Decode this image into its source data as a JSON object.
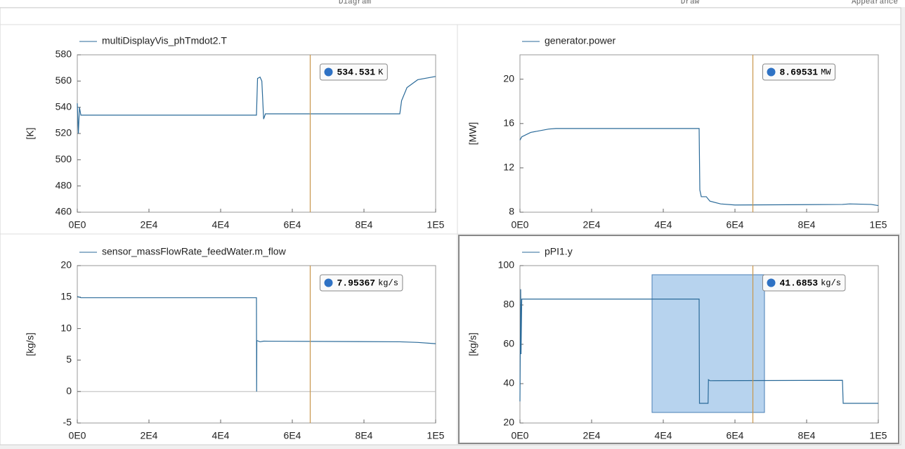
{
  "toolbar": [
    "Diagram",
    "Draw",
    "Appearance"
  ],
  "chart_data": [
    {
      "type": "line",
      "ylabel": "[K]",
      "xlim": [
        0,
        100000
      ],
      "ylim": [
        460,
        580
      ],
      "xticks": [
        {
          "value": 0,
          "label": "0E0"
        },
        {
          "value": 20000,
          "label": "2E4"
        },
        {
          "value": 40000,
          "label": "4E4"
        },
        {
          "value": 60000,
          "label": "6E4"
        },
        {
          "value": 80000,
          "label": "8E4"
        },
        {
          "value": 100000,
          "label": "1E5"
        }
      ],
      "yticks": [
        460,
        480,
        500,
        520,
        540,
        560,
        580
      ],
      "x": [
        0,
        300,
        600,
        1000,
        50000,
        50300,
        51000,
        51500,
        52000,
        52500,
        90000,
        90500,
        92000,
        95000,
        100000
      ],
      "series": [
        {
          "name": "multiDisplayVis_phTmdot2.T",
          "color": "#2a6a99",
          "values": [
            543,
            520,
            540,
            534,
            534,
            562,
            563,
            560,
            531,
            535,
            535,
            545,
            555,
            561,
            563.5
          ]
        }
      ],
      "cursor": {
        "x": 65000,
        "value": 534.531,
        "unit": "K",
        "color": "#c8964b"
      }
    },
    {
      "type": "line",
      "ylabel": "[MW]",
      "xlim": [
        0,
        100000
      ],
      "ylim": [
        8,
        22.2
      ],
      "xticks": [
        {
          "value": 0,
          "label": "0E0"
        },
        {
          "value": 20000,
          "label": "2E4"
        },
        {
          "value": 40000,
          "label": "4E4"
        },
        {
          "value": 60000,
          "label": "6E4"
        },
        {
          "value": 80000,
          "label": "8E4"
        },
        {
          "value": 100000,
          "label": "1E5"
        }
      ],
      "yticks": [
        8,
        12,
        16,
        20
      ],
      "x": [
        0,
        500,
        3000,
        8000,
        10000,
        50000,
        50200,
        50600,
        52000,
        53000,
        56000,
        60000,
        90000,
        92000,
        98000,
        100000
      ],
      "series": [
        {
          "name": "generator.power",
          "color": "#2a6a99",
          "values": [
            14.5,
            14.8,
            15.2,
            15.5,
            15.55,
            15.55,
            10,
            9.4,
            9.4,
            9.0,
            8.75,
            8.65,
            8.7,
            8.75,
            8.7,
            8.6
          ]
        }
      ],
      "cursor": {
        "x": 65000,
        "value": 8.69531,
        "unit": "MW",
        "color": "#c8964b"
      }
    },
    {
      "type": "line",
      "ylabel": "[kg/s]",
      "xlim": [
        0,
        100000
      ],
      "ylim": [
        -5,
        20
      ],
      "xticks": [
        {
          "value": 0,
          "label": "0E0"
        },
        {
          "value": 20000,
          "label": "2E4"
        },
        {
          "value": 40000,
          "label": "4E4"
        },
        {
          "value": 60000,
          "label": "6E4"
        },
        {
          "value": 80000,
          "label": "8E4"
        },
        {
          "value": 100000,
          "label": "1E5"
        }
      ],
      "yticks": [
        -5,
        0,
        5,
        10,
        15,
        20
      ],
      "x": [
        0,
        1000,
        50000,
        50050,
        50100,
        51000,
        52000,
        90000,
        95000,
        100000
      ],
      "series": [
        {
          "name": "sensor_massFlowRate_feedWater.m_flow",
          "color": "#2a6a99",
          "values": [
            15.1,
            14.9,
            14.9,
            0,
            8.1,
            7.9,
            8,
            7.9,
            7.8,
            7.6
          ]
        }
      ],
      "cursor": {
        "x": 65000,
        "value": 7.95367,
        "unit": "kg/s",
        "color": "#c8964b"
      }
    },
    {
      "type": "line",
      "ylabel": "[kg/s]",
      "xlim": [
        0,
        100000
      ],
      "ylim": [
        20,
        100
      ],
      "xticks": [
        {
          "value": 0,
          "label": "0E0"
        },
        {
          "value": 20000,
          "label": "2E4"
        },
        {
          "value": 40000,
          "label": "4E4"
        },
        {
          "value": 60000,
          "label": "6E4"
        },
        {
          "value": 80000,
          "label": "8E4"
        },
        {
          "value": 100000,
          "label": "1E5"
        }
      ],
      "yticks": [
        20,
        40,
        60,
        80,
        100
      ],
      "x": [
        0,
        200,
        300,
        500,
        1500,
        50000,
        50100,
        52500,
        52600,
        53000,
        90000,
        90200,
        100000
      ],
      "series": [
        {
          "name": "pPI1.y",
          "color": "#2a6a99",
          "values": [
            31,
            88,
            55,
            83,
            83,
            83,
            30,
            30,
            42,
            41.5,
            41.7,
            30,
            30
          ]
        }
      ],
      "cursor": {
        "x": 65000,
        "value": 41.6853,
        "unit": "kg/s",
        "color": "#c8964b"
      }
    }
  ]
}
